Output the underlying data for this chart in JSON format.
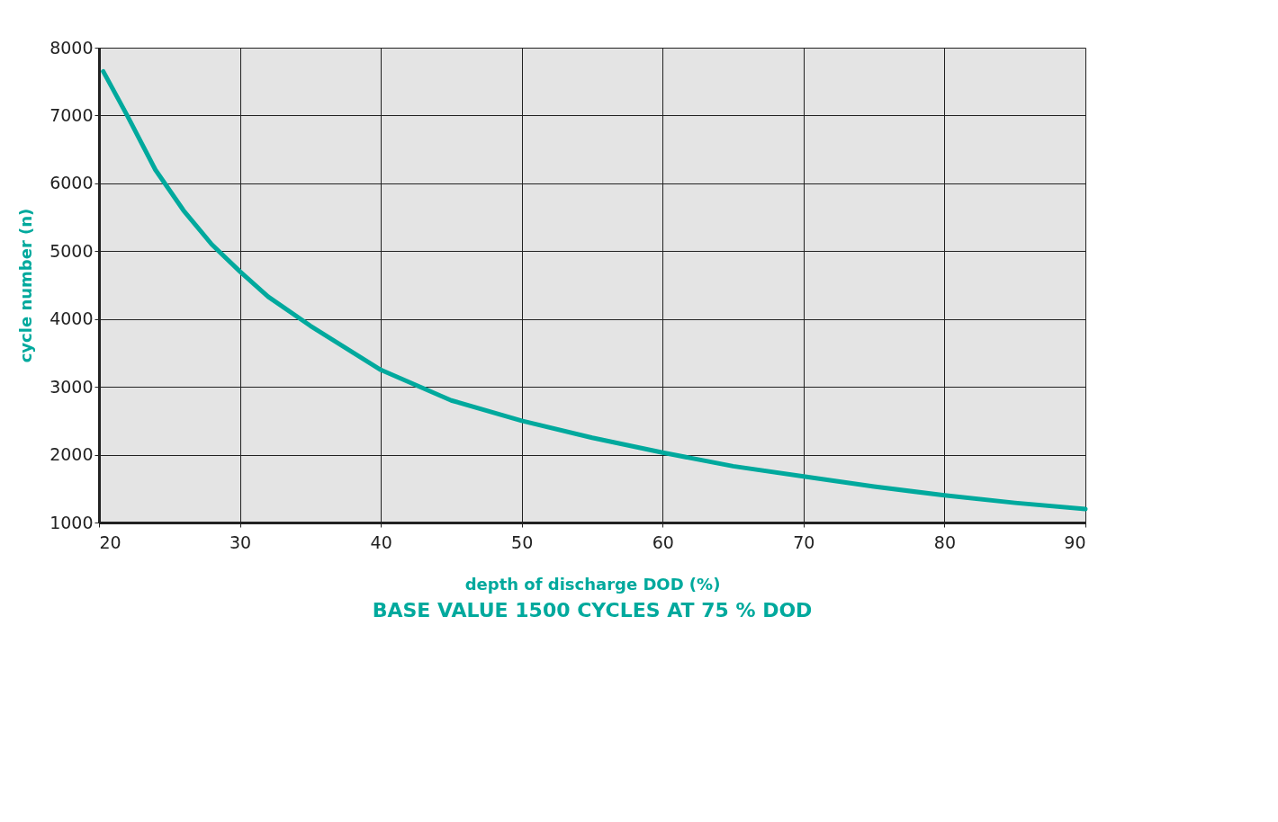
{
  "chart_data": {
    "type": "line",
    "xlabel": "depth of discharge DOD (%)",
    "ylabel": "cycle number (n)",
    "annotations": [
      "BASE VALUE 1500 CYCLES AT 75 % DOD"
    ],
    "x": [
      20.3,
      22,
      24,
      26,
      28,
      30,
      32,
      35,
      40,
      45,
      50,
      55,
      60,
      65,
      70,
      75,
      80,
      85,
      90
    ],
    "series": [
      {
        "color": "#00a99d",
        "values": [
          7650,
          7000,
          6200,
          5600,
          5100,
          4700,
          4330,
          3900,
          3250,
          2800,
          2500,
          2250,
          2030,
          1830,
          1680,
          1530,
          1400,
          1290,
          1200
        ]
      }
    ],
    "xlim": [
      20,
      90
    ],
    "xticks": [
      20,
      30,
      40,
      50,
      60,
      70,
      80,
      90
    ],
    "ylim": [
      1000,
      8000
    ],
    "yticks": [
      1000,
      2000,
      3000,
      4000,
      5000,
      6000,
      7000,
      8000
    ],
    "grid": true,
    "marker": "none",
    "line_style": "solid"
  }
}
